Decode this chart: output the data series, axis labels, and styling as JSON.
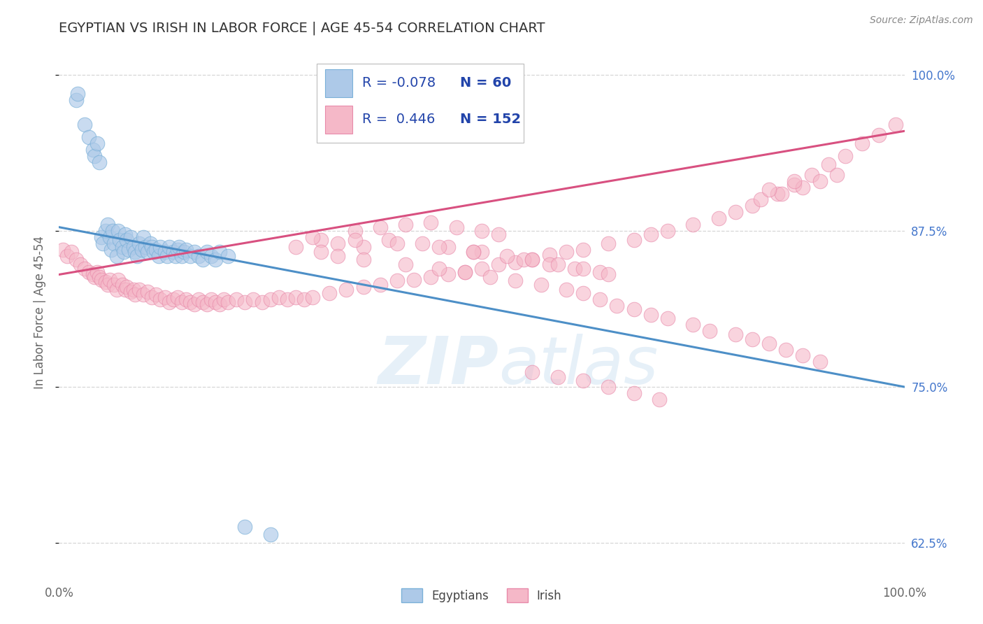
{
  "title": "EGYPTIAN VS IRISH IN LABOR FORCE | AGE 45-54 CORRELATION CHART",
  "source_text": "Source: ZipAtlas.com",
  "ylabel": "In Labor Force | Age 45-54",
  "xlim": [
    0.0,
    1.0
  ],
  "ylim": [
    0.595,
    1.025
  ],
  "ytick_vals": [
    0.625,
    0.75,
    0.875,
    1.0
  ],
  "ytick_labels": [
    "62.5%",
    "75.0%",
    "87.5%",
    "100.0%"
  ],
  "xtick_vals": [
    0.0,
    1.0
  ],
  "xtick_labels": [
    "0.0%",
    "100.0%"
  ],
  "legend_r_egyptian": "-0.078",
  "legend_n_egyptian": "60",
  "legend_r_irish": "0.446",
  "legend_n_irish": "152",
  "egyptian_color": "#adc9e8",
  "egyptian_edge": "#7ab0d8",
  "irish_color": "#f5b8c8",
  "irish_edge": "#e88aaa",
  "eg_line_color": "#4d8fc7",
  "ir_line_color": "#d85080",
  "background_color": "#ffffff",
  "grid_color": "#cccccc",
  "watermark_color": "#c8dff0",
  "eg_line_start_y": 0.878,
  "eg_line_end_y": 0.75,
  "ir_line_start_y": 0.84,
  "ir_line_end_y": 0.955,
  "egyptian_x": [
    0.02,
    0.022,
    0.03,
    0.035,
    0.04,
    0.042,
    0.045,
    0.048,
    0.05,
    0.052,
    0.055,
    0.058,
    0.06,
    0.062,
    0.063,
    0.065,
    0.068,
    0.07,
    0.072,
    0.075,
    0.077,
    0.078,
    0.08,
    0.082,
    0.085,
    0.088,
    0.09,
    0.092,
    0.095,
    0.098,
    0.1,
    0.102,
    0.105,
    0.108,
    0.11,
    0.112,
    0.115,
    0.118,
    0.12,
    0.125,
    0.128,
    0.13,
    0.135,
    0.138,
    0.14,
    0.142,
    0.145,
    0.148,
    0.15,
    0.155,
    0.16,
    0.165,
    0.17,
    0.175,
    0.18,
    0.185,
    0.19,
    0.2,
    0.22,
    0.25
  ],
  "egyptian_y": [
    0.98,
    0.985,
    0.96,
    0.95,
    0.94,
    0.935,
    0.945,
    0.93,
    0.87,
    0.865,
    0.875,
    0.88,
    0.87,
    0.86,
    0.875,
    0.865,
    0.855,
    0.875,
    0.868,
    0.862,
    0.858,
    0.872,
    0.868,
    0.86,
    0.87,
    0.862,
    0.858,
    0.855,
    0.865,
    0.86,
    0.87,
    0.862,
    0.858,
    0.865,
    0.862,
    0.858,
    0.86,
    0.855,
    0.862,
    0.858,
    0.855,
    0.862,
    0.858,
    0.855,
    0.86,
    0.862,
    0.855,
    0.858,
    0.86,
    0.855,
    0.858,
    0.855,
    0.852,
    0.858,
    0.855,
    0.852,
    0.858,
    0.855,
    0.638,
    0.632
  ],
  "irish_x": [
    0.005,
    0.01,
    0.015,
    0.02,
    0.025,
    0.03,
    0.035,
    0.04,
    0.042,
    0.045,
    0.048,
    0.05,
    0.055,
    0.058,
    0.06,
    0.065,
    0.068,
    0.07,
    0.075,
    0.078,
    0.08,
    0.085,
    0.088,
    0.09,
    0.095,
    0.1,
    0.105,
    0.11,
    0.115,
    0.12,
    0.125,
    0.13,
    0.135,
    0.14,
    0.145,
    0.15,
    0.155,
    0.16,
    0.165,
    0.17,
    0.175,
    0.18,
    0.185,
    0.19,
    0.195,
    0.2,
    0.21,
    0.22,
    0.23,
    0.24,
    0.25,
    0.26,
    0.27,
    0.28,
    0.29,
    0.3,
    0.32,
    0.34,
    0.36,
    0.38,
    0.4,
    0.42,
    0.44,
    0.46,
    0.48,
    0.5,
    0.52,
    0.54,
    0.56,
    0.58,
    0.6,
    0.62,
    0.65,
    0.68,
    0.7,
    0.72,
    0.75,
    0.78,
    0.8,
    0.82,
    0.85,
    0.87,
    0.89,
    0.91,
    0.93,
    0.95,
    0.97,
    0.99,
    0.35,
    0.38,
    0.41,
    0.44,
    0.47,
    0.5,
    0.52,
    0.31,
    0.33,
    0.36,
    0.5,
    0.53,
    0.55,
    0.58,
    0.61,
    0.64,
    0.83,
    0.855,
    0.88,
    0.9,
    0.92,
    0.39,
    0.43,
    0.46,
    0.49,
    0.56,
    0.59,
    0.62,
    0.65,
    0.84,
    0.87,
    0.3,
    0.35,
    0.4,
    0.45,
    0.49,
    0.28,
    0.31,
    0.33,
    0.36,
    0.41,
    0.45,
    0.48,
    0.51,
    0.54,
    0.57,
    0.6,
    0.62,
    0.64,
    0.66,
    0.68,
    0.7,
    0.72,
    0.75,
    0.77,
    0.8,
    0.82,
    0.84,
    0.86,
    0.88,
    0.9,
    0.56,
    0.59,
    0.62,
    0.65,
    0.68,
    0.71
  ],
  "irish_y": [
    0.86,
    0.855,
    0.858,
    0.852,
    0.848,
    0.845,
    0.842,
    0.84,
    0.838,
    0.842,
    0.838,
    0.836,
    0.834,
    0.832,
    0.836,
    0.832,
    0.828,
    0.836,
    0.832,
    0.828,
    0.83,
    0.826,
    0.828,
    0.824,
    0.828,
    0.824,
    0.826,
    0.822,
    0.824,
    0.82,
    0.822,
    0.818,
    0.82,
    0.822,
    0.818,
    0.82,
    0.818,
    0.816,
    0.82,
    0.818,
    0.816,
    0.82,
    0.818,
    0.816,
    0.82,
    0.818,
    0.82,
    0.818,
    0.82,
    0.818,
    0.82,
    0.822,
    0.82,
    0.822,
    0.82,
    0.822,
    0.825,
    0.828,
    0.83,
    0.832,
    0.835,
    0.836,
    0.838,
    0.84,
    0.842,
    0.845,
    0.848,
    0.85,
    0.852,
    0.856,
    0.858,
    0.86,
    0.865,
    0.868,
    0.872,
    0.875,
    0.88,
    0.885,
    0.89,
    0.895,
    0.905,
    0.912,
    0.92,
    0.928,
    0.935,
    0.945,
    0.952,
    0.96,
    0.875,
    0.878,
    0.88,
    0.882,
    0.878,
    0.875,
    0.872,
    0.868,
    0.865,
    0.862,
    0.858,
    0.855,
    0.852,
    0.848,
    0.845,
    0.842,
    0.9,
    0.905,
    0.91,
    0.915,
    0.92,
    0.868,
    0.865,
    0.862,
    0.858,
    0.852,
    0.848,
    0.845,
    0.84,
    0.908,
    0.915,
    0.87,
    0.868,
    0.865,
    0.862,
    0.858,
    0.862,
    0.858,
    0.855,
    0.852,
    0.848,
    0.845,
    0.842,
    0.838,
    0.835,
    0.832,
    0.828,
    0.825,
    0.82,
    0.815,
    0.812,
    0.808,
    0.805,
    0.8,
    0.795,
    0.792,
    0.788,
    0.785,
    0.78,
    0.775,
    0.77,
    0.762,
    0.758,
    0.755,
    0.75,
    0.745,
    0.74
  ]
}
